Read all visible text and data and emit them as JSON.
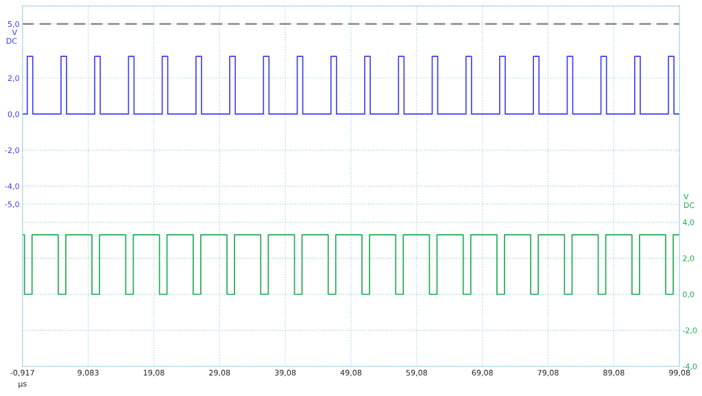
{
  "chart_data": {
    "type": "line",
    "xlabel": "μs",
    "ylabel": "V\nDC",
    "y2label": "V\nDC",
    "xlim": [
      -0.917,
      99.08
    ],
    "xticks": [
      {
        "value": -0.917,
        "label": "-0,917"
      },
      {
        "value": 9.083,
        "label": "9,083"
      },
      {
        "value": 19.08,
        "label": "19,08"
      },
      {
        "value": 29.08,
        "label": "29,08"
      },
      {
        "value": 39.08,
        "label": "39,08"
      },
      {
        "value": 49.08,
        "label": "49,08"
      },
      {
        "value": 59.08,
        "label": "59,08"
      },
      {
        "value": 69.08,
        "label": "69,08"
      },
      {
        "value": 79.08,
        "label": "79,08"
      },
      {
        "value": 89.08,
        "label": "89,08"
      },
      {
        "value": 99.08,
        "label": "99,08"
      }
    ],
    "ylim": [
      -14,
      6
    ],
    "yticks": [
      {
        "value": 5,
        "label": "5,0"
      },
      {
        "value": 2,
        "label": "2,0"
      },
      {
        "value": 0,
        "label": "0,0"
      },
      {
        "value": -2,
        "label": "-2,0"
      },
      {
        "value": -4,
        "label": "-4,0"
      },
      {
        "value": -5,
        "label": "-5,0"
      }
    ],
    "y2lim": [
      -4,
      16
    ],
    "y2ticks": [
      {
        "value": 4,
        "label": "4,0"
      },
      {
        "value": 2,
        "label": "2,0"
      },
      {
        "value": 0,
        "label": "0,0"
      },
      {
        "value": -2,
        "label": "-2,0"
      },
      {
        "value": -4,
        "label": "-4,0"
      }
    ],
    "ref_lines": [
      {
        "axis": "y",
        "value": 5,
        "color": "#808080",
        "line_style": "dashed"
      }
    ],
    "grid": true,
    "legend": false,
    "marker": "none",
    "line_style": "solid",
    "series": [
      {
        "color": "#3c3cf5",
        "x": [
          -0.917,
          -0.19,
          -0.19,
          0.65,
          0.65,
          4.95,
          4.95,
          5.79,
          5.79,
          10.08,
          10.08,
          10.92,
          10.92,
          15.22,
          15.22,
          16.06,
          16.06,
          20.35,
          20.35,
          21.19,
          21.19,
          25.49,
          25.49,
          26.33,
          26.33,
          30.63,
          30.63,
          31.47,
          31.47,
          35.76,
          35.76,
          36.6,
          36.6,
          40.9,
          40.9,
          41.74,
          41.74,
          46.03,
          46.03,
          46.87,
          46.87,
          51.17,
          51.17,
          52.01,
          52.01,
          56.31,
          56.31,
          57.15,
          57.15,
          61.44,
          61.44,
          62.28,
          62.28,
          66.58,
          66.58,
          67.42,
          67.42,
          71.71,
          71.71,
          72.55,
          72.55,
          76.85,
          76.85,
          77.69,
          77.69,
          81.99,
          81.99,
          82.83,
          82.83,
          87.12,
          87.12,
          87.96,
          87.96,
          92.26,
          92.26,
          93.1,
          93.1,
          97.39,
          97.39,
          98.23,
          98.23,
          99.08
        ],
        "values": [
          0,
          0,
          3.2,
          3.2,
          0,
          0,
          3.2,
          3.2,
          0,
          0,
          3.2,
          3.2,
          0,
          0,
          3.2,
          3.2,
          0,
          0,
          3.2,
          3.2,
          0,
          0,
          3.2,
          3.2,
          0,
          0,
          3.2,
          3.2,
          0,
          0,
          3.2,
          3.2,
          0,
          0,
          3.2,
          3.2,
          0,
          0,
          3.2,
          3.2,
          0,
          0,
          3.2,
          3.2,
          0,
          0,
          3.2,
          3.2,
          0,
          0,
          3.2,
          3.2,
          0,
          0,
          3.2,
          3.2,
          0,
          0,
          3.2,
          3.2,
          0,
          0,
          3.2,
          3.2,
          0,
          0,
          3.2,
          3.2,
          0,
          0,
          3.2,
          3.2,
          0,
          0,
          3.2,
          3.2,
          0,
          0,
          3.2,
          3.2,
          0,
          0
        ]
      },
      {
        "color": "#1aab4e",
        "axis": "y2",
        "x": [
          -0.917,
          -0.61,
          -0.61,
          0.54,
          0.54,
          4.53,
          4.53,
          5.68,
          5.68,
          9.66,
          9.66,
          10.81,
          10.81,
          14.8,
          14.8,
          15.95,
          15.95,
          19.93,
          19.93,
          21.08,
          21.08,
          25.07,
          25.07,
          26.22,
          26.22,
          30.21,
          30.21,
          31.36,
          31.36,
          35.34,
          35.34,
          36.49,
          36.49,
          40.48,
          40.48,
          41.63,
          41.63,
          45.61,
          45.61,
          46.76,
          46.76,
          50.75,
          50.75,
          51.9,
          51.9,
          55.89,
          55.89,
          57.04,
          57.04,
          61.02,
          61.02,
          62.17,
          62.17,
          66.16,
          66.16,
          67.31,
          67.31,
          71.29,
          71.29,
          72.44,
          72.44,
          76.43,
          76.43,
          77.58,
          77.58,
          81.57,
          81.57,
          82.72,
          82.72,
          86.7,
          86.7,
          87.85,
          87.85,
          91.84,
          91.84,
          92.99,
          92.99,
          96.97,
          96.97,
          98.12,
          98.12,
          99.08
        ],
        "values": [
          3.3,
          3.3,
          0,
          0,
          3.3,
          3.3,
          0,
          0,
          3.3,
          3.3,
          0,
          0,
          3.3,
          3.3,
          0,
          0,
          3.3,
          3.3,
          0,
          0,
          3.3,
          3.3,
          0,
          0,
          3.3,
          3.3,
          0,
          0,
          3.3,
          3.3,
          0,
          0,
          3.3,
          3.3,
          0,
          0,
          3.3,
          3.3,
          0,
          0,
          3.3,
          3.3,
          0,
          0,
          3.3,
          3.3,
          0,
          0,
          3.3,
          3.3,
          0,
          0,
          3.3,
          3.3,
          0,
          0,
          3.3,
          3.3,
          0,
          0,
          3.3,
          3.3,
          0,
          0,
          3.3,
          3.3,
          0,
          0,
          3.3,
          3.3,
          0,
          0,
          3.3,
          3.3,
          0,
          0,
          3.3,
          3.3,
          0,
          0,
          3.3,
          3.3
        ]
      }
    ]
  }
}
